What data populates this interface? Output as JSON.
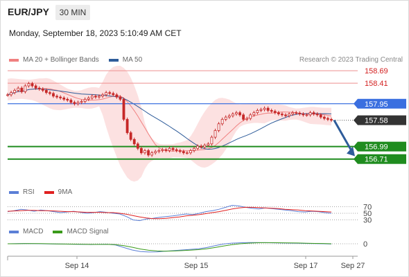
{
  "header": {
    "pair": "EUR/JPY",
    "timeframe": "30 MIN",
    "datetime": "Monday, September 18, 2023 5:10:49 AM CET"
  },
  "legend": {
    "main": [
      {
        "label": "MA 20 + Bollinger Bands",
        "color": "#f08080"
      },
      {
        "label": "MA 50",
        "color": "#2e5c9a"
      }
    ],
    "credit": "Research © 2023 Trading Central",
    "rsi": [
      {
        "label": "RSI",
        "color": "#5b7fd6"
      },
      {
        "label": "9MA",
        "color": "#e02020"
      }
    ],
    "macd": [
      {
        "label": "MACD",
        "color": "#5b7fd6"
      },
      {
        "label": "MACD Signal",
        "color": "#3a9a1a"
      }
    ]
  },
  "colors": {
    "resistance": "#ee8f8f",
    "support": "#1f8c1f",
    "pivot": "#3a6fe0",
    "candle": "#c62828",
    "bollinger": "#fbd4d4",
    "ma50": "#2e5c9a",
    "forecast_arrow": "#2e5c9a"
  },
  "chart_data": [
    {
      "type": "candlestick",
      "panel": "price",
      "y_range": [
        156.55,
        158.8
      ],
      "x_labels": [
        "Sep 14",
        "Sep 15",
        "Sep 17",
        "Sep 27"
      ],
      "levels": [
        {
          "value": 158.69,
          "label": "158.69",
          "kind": "resistance"
        },
        {
          "value": 158.41,
          "label": "158.41",
          "kind": "resistance"
        },
        {
          "value": 157.95,
          "label": "157.95",
          "kind": "pivot"
        },
        {
          "value": 157.58,
          "label": "157.58",
          "kind": "last"
        },
        {
          "value": 156.99,
          "label": "156.99",
          "kind": "support"
        },
        {
          "value": 156.71,
          "label": "156.71",
          "kind": "support"
        }
      ],
      "close_series": [
        158.15,
        158.2,
        158.25,
        158.3,
        158.22,
        158.35,
        158.4,
        158.35,
        158.3,
        158.28,
        158.25,
        158.2,
        158.18,
        158.12,
        158.1,
        158.08,
        158.05,
        158.03,
        157.98,
        157.95,
        157.98,
        158.0,
        158.05,
        158.08,
        158.12,
        158.1,
        158.12,
        158.15,
        158.2,
        158.18,
        158.15,
        158.1,
        158.05,
        157.6,
        157.3,
        157.15,
        157.05,
        156.95,
        156.85,
        156.9,
        156.8,
        156.85,
        156.88,
        156.9,
        156.92,
        156.9,
        156.95,
        156.92,
        156.9,
        156.88,
        156.85,
        156.85,
        156.9,
        156.95,
        157.0,
        156.98,
        157.02,
        157.05,
        157.2,
        157.35,
        157.5,
        157.6,
        157.65,
        157.68,
        157.72,
        157.75,
        157.7,
        157.6,
        157.62,
        157.7,
        157.75,
        157.8,
        157.82,
        157.85,
        157.8,
        157.78,
        157.75,
        157.72,
        157.7,
        157.68,
        157.72,
        157.75,
        157.74,
        157.72,
        157.7,
        157.7,
        157.75,
        157.72,
        157.7,
        157.65,
        157.62,
        157.6,
        157.58
      ],
      "last_price": 157.58,
      "forecast_target": 156.99
    },
    {
      "type": "line",
      "panel": "rsi",
      "levels": [
        {
          "value": 70,
          "label": "70"
        },
        {
          "value": 50,
          "label": "50"
        },
        {
          "value": 30,
          "label": "30"
        }
      ],
      "y_range": [
        0,
        100
      ],
      "series": [
        {
          "name": "RSI",
          "values": [
            55,
            58,
            62,
            60,
            56,
            60,
            58,
            55,
            52,
            54,
            56,
            53,
            50,
            52,
            55,
            53,
            50,
            48,
            40,
            30,
            28,
            33,
            35,
            38,
            40,
            42,
            45,
            48,
            46,
            50,
            55,
            58,
            62,
            68,
            74,
            72,
            68,
            65,
            63,
            66,
            64,
            62,
            60,
            58,
            55,
            54,
            56,
            55,
            52,
            50
          ]
        },
        {
          "name": "9MA",
          "values": [
            56,
            57,
            58,
            59,
            59,
            58,
            58,
            57,
            56,
            55,
            55,
            54,
            53,
            53,
            53,
            52,
            52,
            50,
            47,
            43,
            39,
            36,
            34,
            34,
            35,
            37,
            39,
            42,
            44,
            46,
            49,
            52,
            55,
            59,
            63,
            66,
            68,
            68,
            67,
            66,
            65,
            64,
            62,
            61,
            60,
            58,
            57,
            56,
            55,
            54
          ]
        }
      ]
    },
    {
      "type": "line",
      "panel": "macd",
      "levels": [
        {
          "value": 0,
          "label": "0"
        }
      ],
      "y_range": [
        -1,
        0.2
      ],
      "series": [
        {
          "name": "MACD",
          "values": [
            0.0,
            0.01,
            0.02,
            0.01,
            0.0,
            -0.01,
            -0.02,
            -0.03,
            -0.04,
            -0.05,
            -0.06,
            -0.05,
            -0.04,
            -0.1,
            -0.3,
            -0.5,
            -0.62,
            -0.66,
            -0.65,
            -0.6,
            -0.55,
            -0.5,
            -0.45,
            -0.4,
            -0.3,
            -0.15,
            -0.02,
            0.05,
            0.08,
            0.1,
            0.1,
            0.09,
            0.08,
            0.06,
            0.05,
            0.04,
            0.02,
            0.01,
            0.0,
            -0.02
          ]
        },
        {
          "name": "MACD Signal",
          "values": [
            0.0,
            0.0,
            0.01,
            0.01,
            0.01,
            0.0,
            -0.01,
            -0.02,
            -0.03,
            -0.04,
            -0.05,
            -0.05,
            -0.05,
            -0.07,
            -0.15,
            -0.28,
            -0.42,
            -0.52,
            -0.58,
            -0.6,
            -0.58,
            -0.55,
            -0.51,
            -0.47,
            -0.4,
            -0.3,
            -0.18,
            -0.08,
            0.0,
            0.05,
            0.08,
            0.09,
            0.09,
            0.08,
            0.07,
            0.06,
            0.04,
            0.03,
            0.02,
            0.0
          ]
        }
      ]
    }
  ]
}
